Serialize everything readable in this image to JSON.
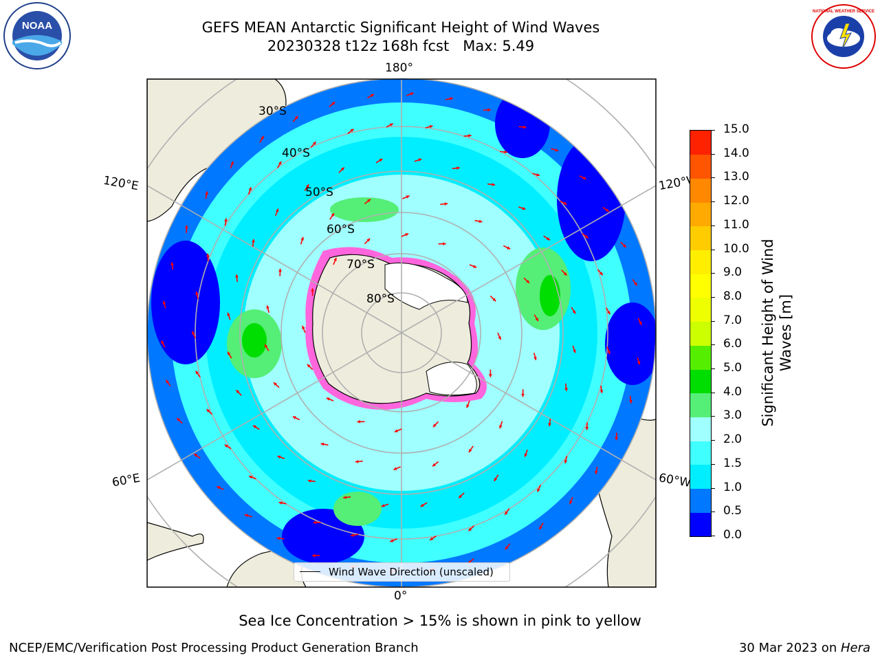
{
  "header": {
    "title_line1": "GEFS MEAN Antarctic Significant Height of Wind Waves",
    "title_line2": "20230328 t12z 168h fcst   Max: 5.49"
  },
  "map": {
    "projection": "south-polar-stereographic",
    "longitude_labels": {
      "top": "180°",
      "bottom": "0°",
      "left_upper": "120°E",
      "left_lower": "60°E",
      "right_upper": "120°W",
      "right_lower": "60°W"
    },
    "latitude_labels": [
      "30°S",
      "40°S",
      "50°S",
      "60°S",
      "70°S",
      "80°S"
    ],
    "legend_label": "Wind Wave Direction (unscaled)",
    "arrow_color": "#ff0000",
    "land_color": "#eeecdc",
    "ocean_colors": [
      "#0000ff",
      "#0078ff",
      "#00eeff",
      "#40ffff",
      "#a0ffff",
      "#55ee77",
      "#00dd00"
    ]
  },
  "colorbar": {
    "label": "Significant Height of Wind Waves [m]",
    "ticks": [
      "0.0",
      "0.5",
      "1.0",
      "1.5",
      "2.0",
      "3.0",
      "4.0",
      "5.0",
      "6.0",
      "7.0",
      "8.0",
      "9.0",
      "10.0",
      "11.0",
      "12.0",
      "13.0",
      "14.0",
      "15.0"
    ],
    "colors": [
      "#0000ff",
      "#0078ff",
      "#00eeff",
      "#40ffff",
      "#a0ffff",
      "#55ee77",
      "#00dd00",
      "#55ee00",
      "#ccff00",
      "#eeff00",
      "#ffff00",
      "#ffee00",
      "#ffcc00",
      "#ffaa00",
      "#ff8800",
      "#ff5500",
      "#ff2200"
    ]
  },
  "notes": {
    "sea_ice": "Sea Ice Concentration > 15% is shown in pink to yellow"
  },
  "footer": {
    "left": "NCEP/EMC/Verification Post Processing Product Generation Branch",
    "right_date": "30 Mar 2023 on ",
    "right_host": "Hera"
  },
  "logos": {
    "noaa": "NOAA",
    "nws": "NATIONAL WEATHER SERVICE"
  }
}
